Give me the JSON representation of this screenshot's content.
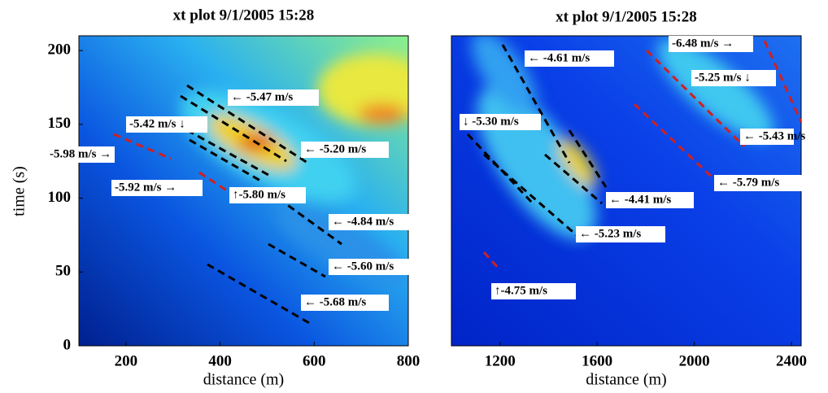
{
  "chart_data": [
    {
      "type": "heatmap",
      "title": "xt plot 9/1/2005 15:28",
      "x_label": "distance (m)",
      "y_label": "time (s)",
      "xlim": [
        100,
        800
      ],
      "xticks": [
        200,
        400,
        600,
        800
      ],
      "ylim": [
        0,
        210
      ],
      "yticks": [
        0,
        50,
        100,
        150,
        200
      ],
      "annotations": [
        "← -5.47 m/s",
        "-5.42 m/s ↓",
        "-5.98 m/s →",
        "← -5.20 m/s",
        "-5.92 m/s →",
        "↑-5.80 m/s",
        "← -4.84 m/s",
        "← -5.60 m/s",
        "← -5.68 m/s"
      ]
    },
    {
      "type": "heatmap",
      "title": "xt plot 9/1/2005 15:28",
      "x_label": "distance (m)",
      "xlim": [
        1000,
        2440
      ],
      "xticks": [
        1200,
        1600,
        2000,
        2400
      ],
      "ylim": [
        0,
        210
      ],
      "annotations": [
        "← -4.61 m/s",
        "-6.48 m/s →",
        "-5.25 m/s ↓",
        "↓ -5.30 m/s",
        "← -5.43 m/s",
        "← -5.79 m/s",
        "← -4.41 m/s",
        "← -5.23 m/s",
        "↑-4.75 m/s"
      ]
    }
  ]
}
